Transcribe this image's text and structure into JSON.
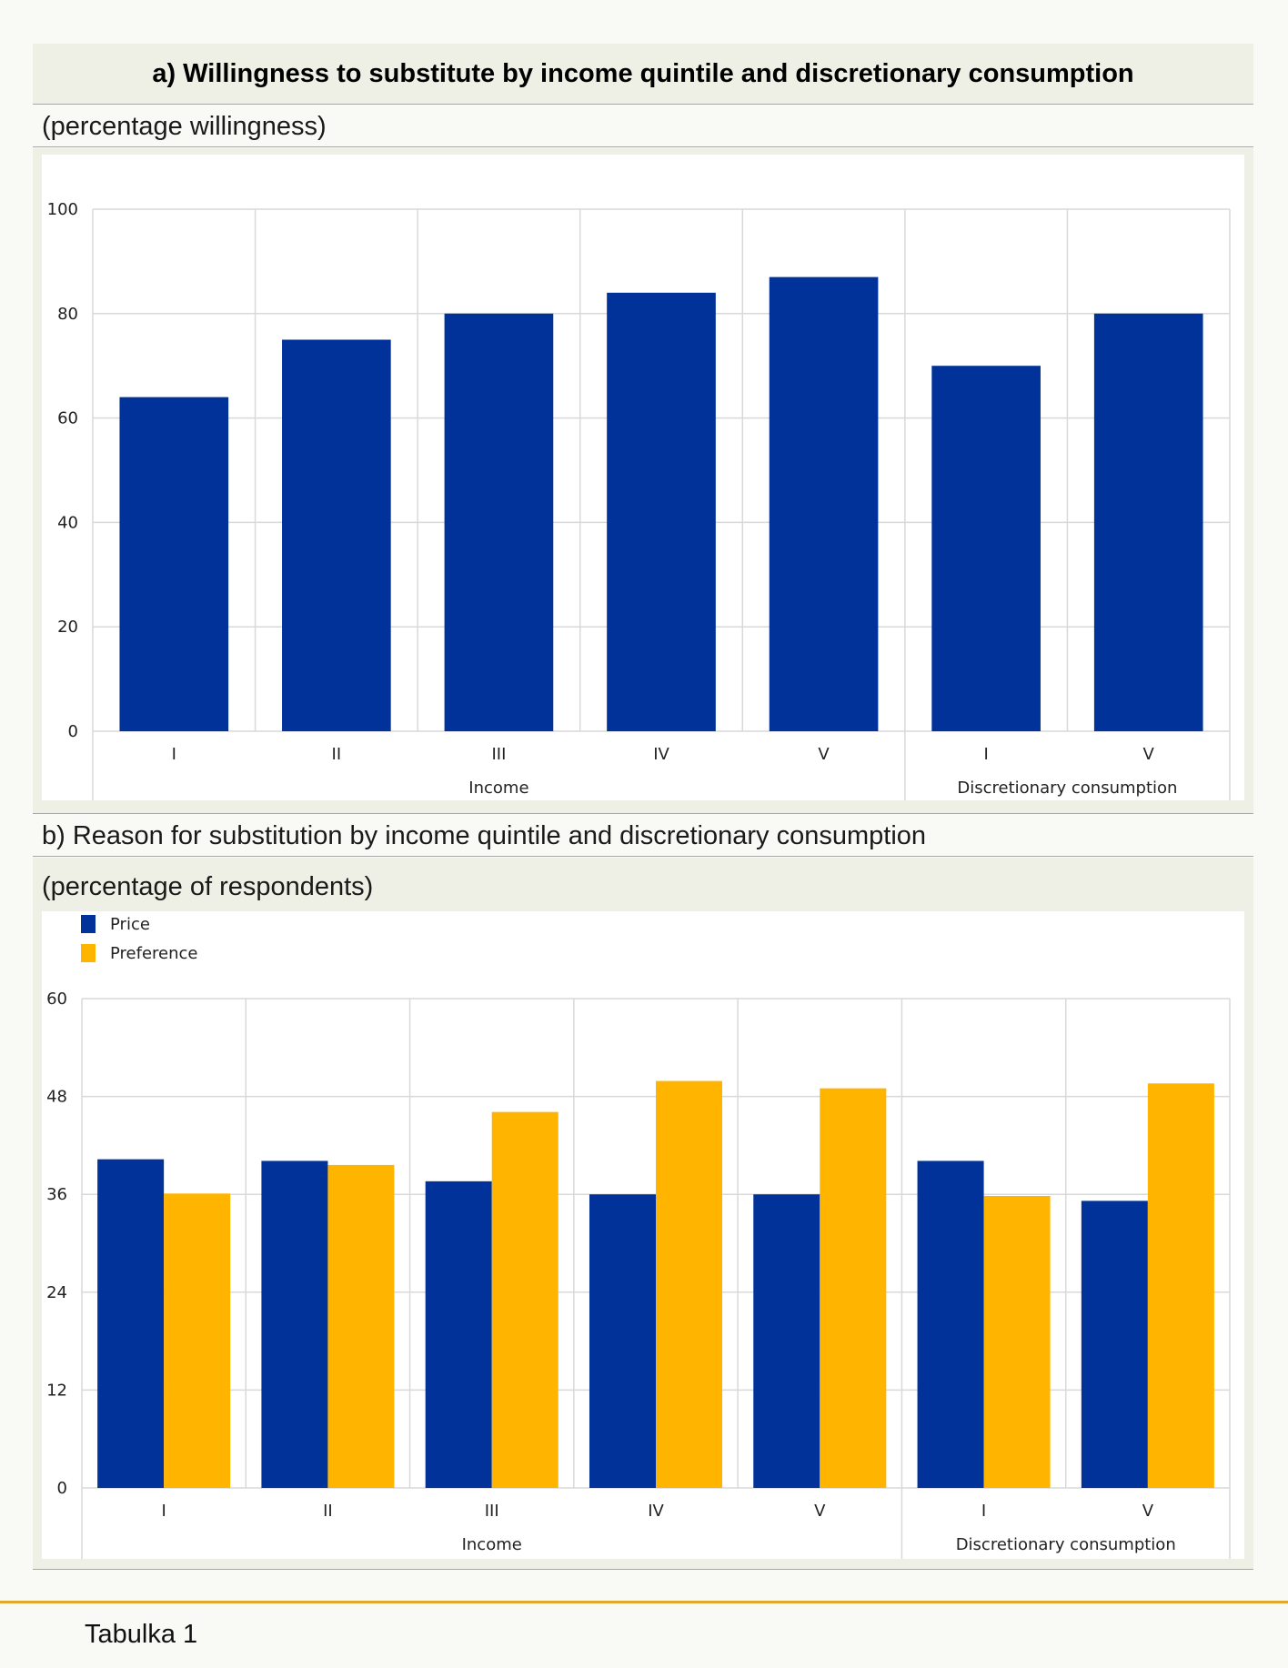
{
  "panel_a": {
    "title": "a) Willingness to substitute by income quintile and discretionary consumption",
    "subtitle": "(percentage willingness)"
  },
  "panel_b": {
    "title": "b) Reason for substitution by income quintile and discretionary consumption",
    "subtitle": "(percentage of respondents)"
  },
  "footer": {
    "label": "Tabulka 1"
  },
  "colors": {
    "price": "#003299",
    "preference": "#ffb400",
    "grid": "#d9d9d9"
  },
  "chart_data": [
    {
      "type": "bar",
      "categories": [
        "I",
        "II",
        "III",
        "IV",
        "V",
        "I",
        "V"
      ],
      "groups": [
        {
          "label": "Income",
          "count": 5
        },
        {
          "label": "Discretionary consumption",
          "count": 2
        }
      ],
      "series": [
        {
          "values": [
            64,
            75,
            80,
            84,
            87,
            70,
            80
          ]
        }
      ],
      "ylim": [
        0,
        100
      ],
      "yticks": [
        0,
        20,
        40,
        60,
        80,
        100
      ],
      "grid": true
    },
    {
      "type": "bar",
      "categories": [
        "I",
        "II",
        "III",
        "IV",
        "V",
        "I",
        "V"
      ],
      "groups": [
        {
          "label": "Income",
          "count": 5
        },
        {
          "label": "Discretionary consumption",
          "count": 2
        }
      ],
      "series": [
        {
          "name": "Price",
          "values": [
            40.3,
            40.1,
            37.6,
            36,
            36,
            40.1,
            35.2
          ]
        },
        {
          "name": "Preference",
          "values": [
            36.1,
            39.6,
            46.1,
            49.9,
            49,
            35.8,
            49.6
          ]
        }
      ],
      "ylim": [
        0,
        60
      ],
      "yticks": [
        0,
        12,
        24,
        36,
        48,
        60
      ],
      "legend": "top-left",
      "grid": true
    }
  ]
}
